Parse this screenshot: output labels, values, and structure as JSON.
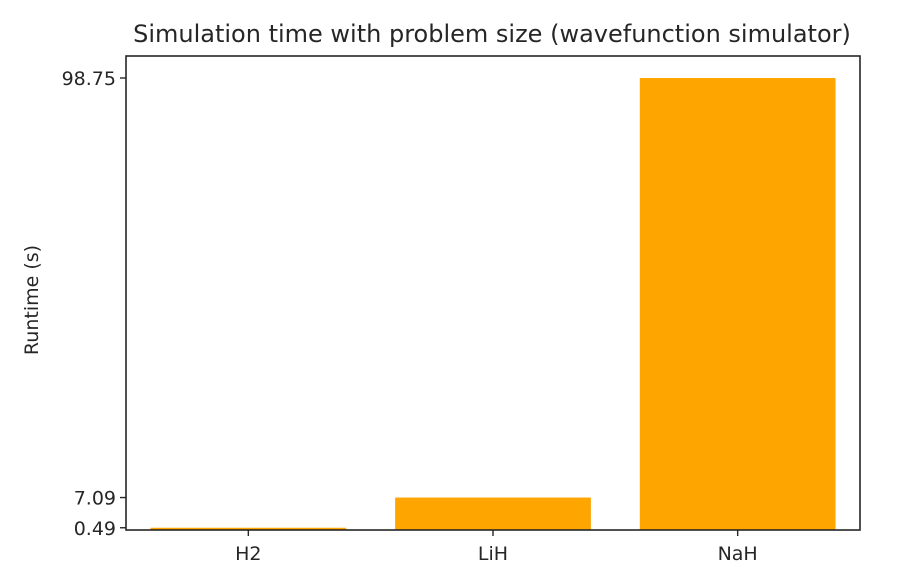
{
  "chart_data": {
    "type": "bar",
    "title": "Simulation time with problem size (wavefunction simulator)",
    "xlabel": "",
    "ylabel": "Runtime (s)",
    "categories": [
      "H2",
      "LiH",
      "NaH"
    ],
    "values": [
      0.49,
      7.09,
      98.75
    ],
    "yticks": [
      0.49,
      7.09,
      98.75
    ],
    "ytick_labels": [
      "0.49",
      "7.09",
      "98.75"
    ],
    "ylim": [
      0.0,
      98.75
    ],
    "bar_color": "#ffa500",
    "grid": false,
    "legend": "none"
  }
}
